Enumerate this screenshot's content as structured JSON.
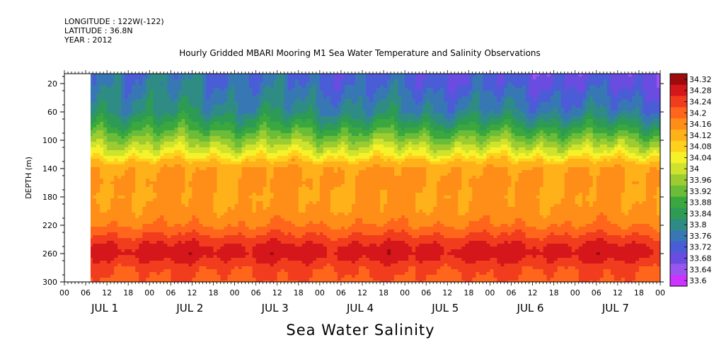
{
  "header": {
    "longitude": "LONGITUDE : 122W(-122)",
    "latitude": "LATITUDE : 36.8N",
    "year": "YEAR : 2012"
  },
  "chart_data": {
    "type": "heatmap",
    "title": "Hourly Gridded MBARI Mooring M1 Sea Water Temperature and Salinity Observations",
    "xlabel": "Sea Water Salinity",
    "ylabel": "DEPTH (m)",
    "y_ticks": [
      20,
      60,
      100,
      140,
      180,
      220,
      260,
      300
    ],
    "ylim": [
      300,
      6
    ],
    "x_hour_ticks": [
      "00",
      "06",
      "12",
      "18",
      "00",
      "06",
      "12",
      "18",
      "00",
      "06",
      "12",
      "18",
      "00",
      "06",
      "12",
      "18",
      "00",
      "06",
      "12",
      "18",
      "00",
      "06",
      "12",
      "18",
      "00",
      "06",
      "12",
      "18",
      "00"
    ],
    "x_day_labels": [
      "JUL  1",
      "JUL  2",
      "JUL  3",
      "JUL  4",
      "JUL  5",
      "JUL  6",
      "JUL  7"
    ],
    "x_range_hours": [
      0,
      168
    ],
    "data_start_hour": 7,
    "colorbar": {
      "labels": [
        "34.32",
        "34.28",
        "34.24",
        "34.2",
        "34.16",
        "34.12",
        "34.08",
        "34.04",
        "34",
        "33.96",
        "33.92",
        "33.88",
        "33.84",
        "33.8",
        "33.76",
        "33.72",
        "33.68",
        "33.64",
        "33.6"
      ],
      "colors_low_to_high": [
        "#cc33ff",
        "#9955ee",
        "#6a4de0",
        "#4a5cd6",
        "#3778b4",
        "#2f8c84",
        "#2e9b55",
        "#3aa83e",
        "#6bbd38",
        "#9ccc30",
        "#cfe22c",
        "#f6f22a",
        "#ffd01c",
        "#ffb11a",
        "#ff8e18",
        "#ff661c",
        "#f23c1e",
        "#d5161a",
        "#9e0b0d"
      ]
    },
    "profile": {
      "depths": [
        6,
        20,
        40,
        60,
        80,
        100,
        120,
        130,
        140,
        160,
        180,
        200,
        220,
        240,
        250,
        260,
        270,
        280,
        300
      ],
      "values": [
        33.78,
        33.78,
        33.8,
        33.82,
        33.88,
        33.96,
        34.04,
        34.1,
        34.14,
        34.15,
        34.14,
        34.15,
        34.18,
        34.24,
        34.27,
        34.28,
        34.26,
        34.23,
        34.21
      ]
    }
  }
}
